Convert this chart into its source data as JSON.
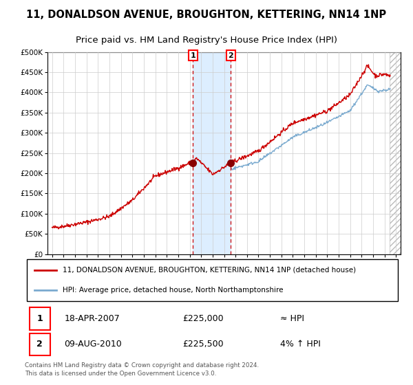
{
  "title": "11, DONALDSON AVENUE, BROUGHTON, KETTERING, NN14 1NP",
  "subtitle": "Price paid vs. HM Land Registry's House Price Index (HPI)",
  "legend_line1": "11, DONALDSON AVENUE, BROUGHTON, KETTERING, NN14 1NP (detached house)",
  "legend_line2": "HPI: Average price, detached house, North Northamptonshire",
  "footnote": "Contains HM Land Registry data © Crown copyright and database right 2024.\nThis data is licensed under the Open Government Licence v3.0.",
  "transaction1_date": "18-APR-2007",
  "transaction1_price": 225000,
  "transaction1_price_str": "£225,000",
  "transaction1_label": "≈ HPI",
  "transaction1_x": 2007.29,
  "transaction2_date": "09-AUG-2010",
  "transaction2_price": 225500,
  "transaction2_price_str": "£225,500",
  "transaction2_label": "4% ↑ HPI",
  "transaction2_x": 2010.6,
  "shade_x1": 2007.29,
  "shade_x2": 2010.6,
  "hatch_x": 2024.42,
  "red_line_color": "#cc0000",
  "blue_line_color": "#7aaacf",
  "marker_color": "#880000",
  "shade_color": "#ddeeff",
  "hatch_color": "#bbbbbb",
  "dashed_color": "#cc0000",
  "ylim_min": 0,
  "ylim_max": 500000,
  "xlim_min": 1994.6,
  "xlim_max": 2025.4,
  "bg_color": "#ffffff",
  "grid_color": "#cccccc",
  "title_fontsize": 10.5,
  "subtitle_fontsize": 9.5
}
